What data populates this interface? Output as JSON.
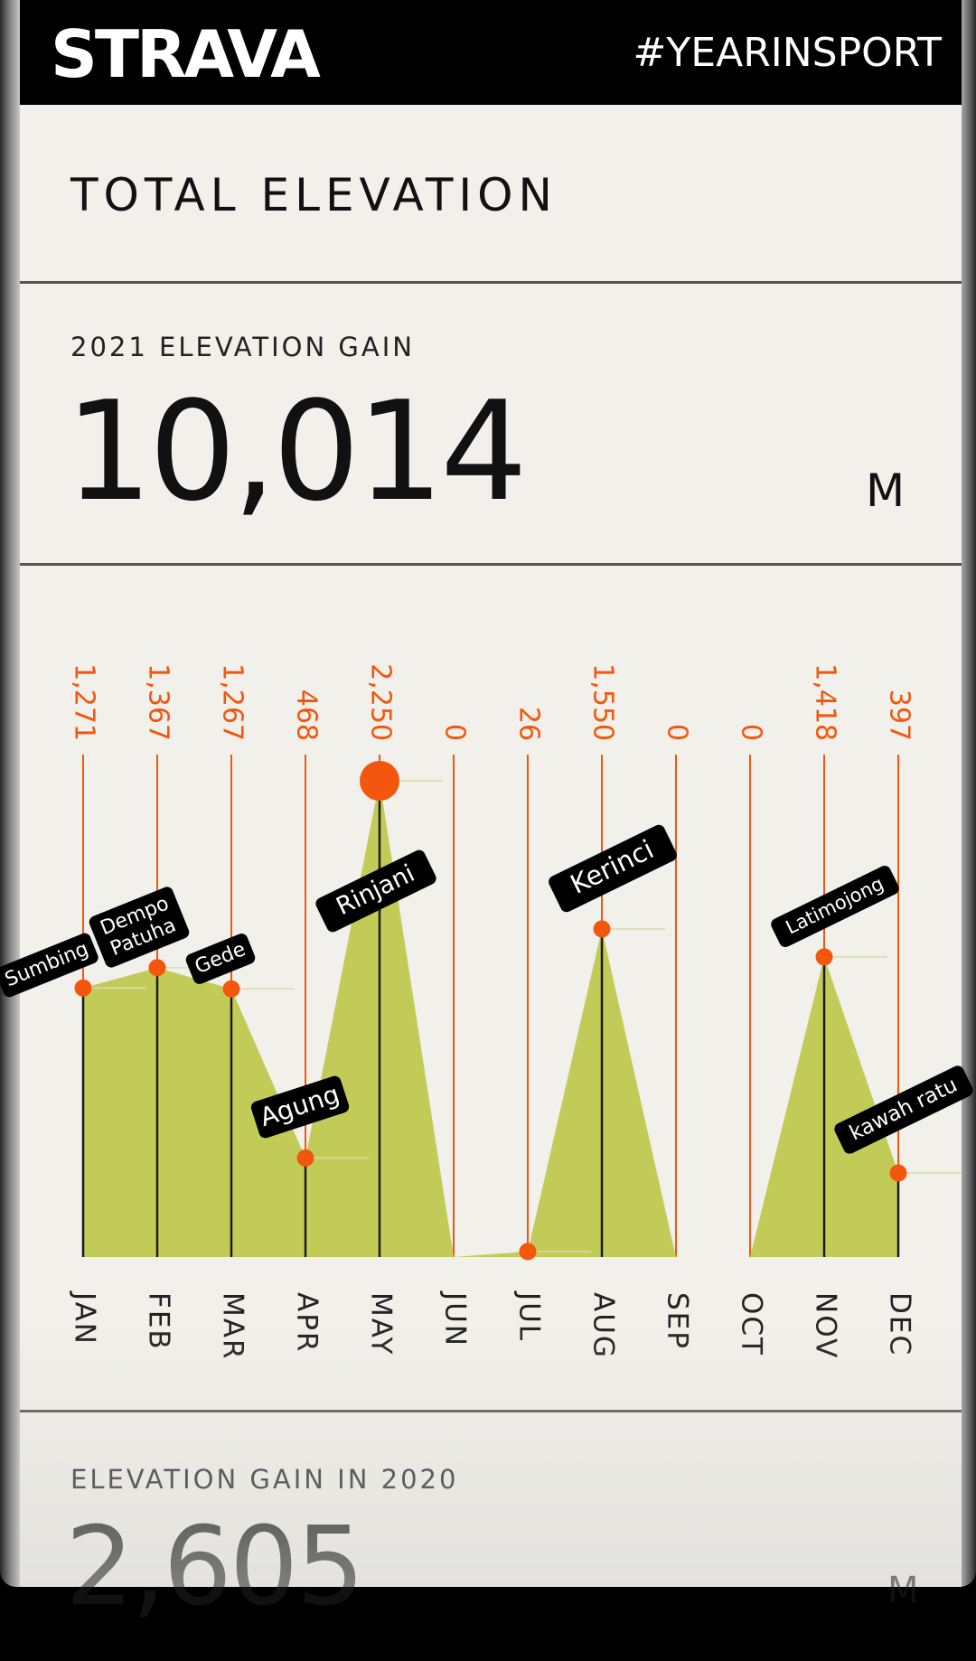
{
  "header": {
    "logo": "STRAVA",
    "hashtag": "#YEARINSPORT"
  },
  "section_title": "TOTAL ELEVATION",
  "current": {
    "label": "2021 ELEVATION GAIN",
    "value": "10,014",
    "unit": "M"
  },
  "previous": {
    "label": "ELEVATION GAIN IN 2020",
    "value": "2,605",
    "unit": "M"
  },
  "colors": {
    "fill": "#c3cb58",
    "accent": "#f2570d",
    "stem": "#1a1a1a",
    "label_bg": "#000000",
    "label_text": "#ffffff"
  },
  "chart_data": {
    "type": "area",
    "categories": [
      "JAN",
      "FEB",
      "MAR",
      "APR",
      "MAY",
      "JUN",
      "JUL",
      "AUG",
      "SEP",
      "OCT",
      "NOV",
      "DEC"
    ],
    "values": [
      1271,
      1367,
      1267,
      468,
      2250,
      0,
      26,
      1550,
      0,
      0,
      1418,
      397
    ],
    "value_labels": [
      "1,271",
      "1,367",
      "1,267",
      "468",
      "2,250",
      "0",
      "26",
      "1,550",
      "0",
      "0",
      "1,418",
      "397"
    ],
    "highlight_index": 4,
    "annotations": [
      {
        "month": "JAN",
        "text": "Sumbing"
      },
      {
        "month": "FEB",
        "text": "Dempo\nPatuha"
      },
      {
        "month": "MAR",
        "text": "Gede"
      },
      {
        "month": "APR",
        "text": "Agung"
      },
      {
        "month": "MAY",
        "text": "Rinjani"
      },
      {
        "month": "AUG",
        "text": "Kerinci"
      },
      {
        "month": "NOV",
        "text": "Latimojong"
      },
      {
        "month": "DEC",
        "text": "kawah ratu"
      }
    ]
  }
}
